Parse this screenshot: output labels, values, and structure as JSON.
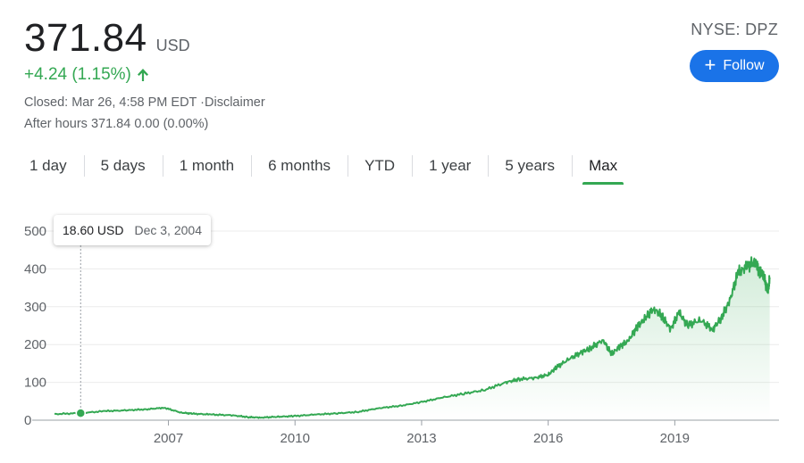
{
  "quote": {
    "price": "371.84",
    "currency": "USD",
    "change": "+4.24 (1.15%)",
    "direction_icon": "arrow-up-icon",
    "closed": "Closed: Mar 26, 4:58 PM EDT ·Disclaimer",
    "after_hours": "After hours 371.84 0.00 (0.00%)",
    "ticker": "NYSE: DPZ",
    "follow_label": "Follow",
    "follow_icon": "plus-icon",
    "positive_color": "#34a853",
    "button_color": "#1a73e8"
  },
  "tabs": [
    {
      "label": "1 day"
    },
    {
      "label": "5 days"
    },
    {
      "label": "1 month"
    },
    {
      "label": "6 months"
    },
    {
      "label": "YTD"
    },
    {
      "label": "1 year"
    },
    {
      "label": "5 years"
    },
    {
      "label": "Max",
      "active": true
    }
  ],
  "tooltip": {
    "price": "18.60 USD",
    "date": "Dec 3, 2004"
  },
  "chart_data": {
    "type": "area",
    "yticks": [
      0,
      100,
      200,
      300,
      400,
      500
    ],
    "ylim": [
      0,
      500
    ],
    "xticks": [
      2007,
      2010,
      2013,
      2016,
      2019
    ],
    "xlim": [
      2004.3,
      2021.3
    ],
    "grid": true,
    "line_color": "#34a853",
    "series": [
      {
        "x": [
          2004.3,
          2004.9,
          2005.5,
          2006.0,
          2006.5,
          2006.9,
          2007.3,
          2007.6,
          2008.0,
          2008.5,
          2008.9,
          2009.2,
          2009.6,
          2010.0,
          2010.5,
          2011.0,
          2011.5,
          2012.0,
          2012.5,
          2013.0,
          2013.5,
          2014.0,
          2014.5,
          2015.0,
          2015.3,
          2015.7,
          2016.0,
          2016.2,
          2016.5,
          2016.8,
          2017.0,
          2017.3,
          2017.5,
          2017.7,
          2017.9,
          2018.1,
          2018.3,
          2018.5,
          2018.7,
          2018.9,
          2019.1,
          2019.3,
          2019.6,
          2019.9,
          2020.1,
          2020.3,
          2020.5,
          2020.7,
          2020.9,
          2021.0,
          2021.1,
          2021.2,
          2021.25
        ],
        "y": [
          16,
          18.6,
          24,
          26,
          29,
          33,
          20,
          17,
          15,
          13,
          8,
          7,
          9,
          11,
          15,
          18,
          22,
          32,
          38,
          48,
          60,
          70,
          80,
          100,
          108,
          112,
          120,
          140,
          162,
          180,
          190,
          212,
          175,
          195,
          210,
          245,
          270,
          295,
          275,
          240,
          285,
          250,
          265,
          240,
          270,
          315,
          390,
          405,
          420,
          395,
          385,
          340,
          372
        ]
      }
    ]
  }
}
